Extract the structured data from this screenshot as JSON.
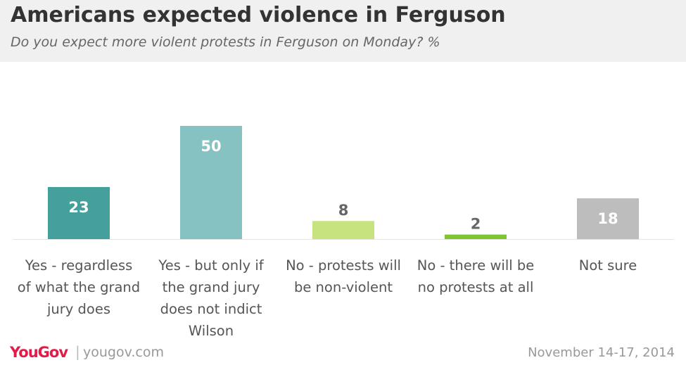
{
  "header": {
    "title": "Americans expected violence in Ferguson",
    "subtitle": "Do you expect more violent protests in Ferguson on Monday? %"
  },
  "footer": {
    "logo": "YouGov",
    "separator": "|",
    "site": "yougov.com",
    "date": "November 14-17, 2014"
  },
  "chart_data": {
    "type": "bar",
    "title": "Americans expected violence in Ferguson",
    "subtitle": "Do you expect more violent protests in Ferguson on Monday? %",
    "categories": [
      "Yes - regardless of what the grand jury does",
      "Yes - but only if the grand jury does not indict Wilson",
      "No - protests will be non-violent",
      "No - there will be no protests at all",
      "Not sure"
    ],
    "category_lines": [
      [
        "Yes - regardless",
        "of what the grand",
        "jury does"
      ],
      [
        "Yes - but only if",
        "the grand jury",
        "does not indict",
        "Wilson"
      ],
      [
        "No - protests will",
        "be non-violent"
      ],
      [
        "No - there will be",
        "no protests at all"
      ],
      [
        "Not sure"
      ]
    ],
    "values": [
      23,
      50,
      8,
      2,
      18
    ],
    "colors": [
      "#45a09c",
      "#86c2c2",
      "#c6e37f",
      "#7fc531",
      "#bdbdbd"
    ],
    "label_colors": [
      "#ffffff",
      "#ffffff",
      "#666666",
      "#666666",
      "#ffffff"
    ],
    "ylim": [
      0,
      60
    ],
    "grid": false
  }
}
